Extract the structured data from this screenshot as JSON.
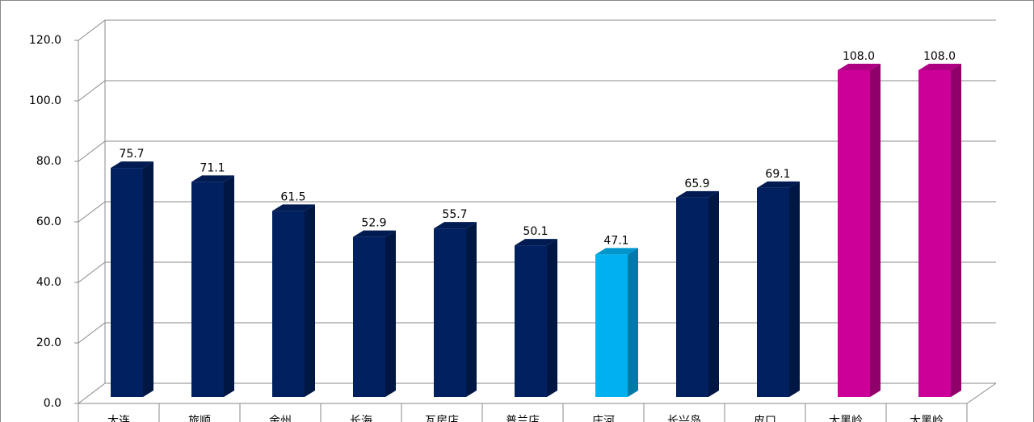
{
  "chart_data": {
    "type": "bar3d",
    "categories": [
      "大连",
      "旅顺",
      "金州",
      "长海",
      "瓦房店",
      "普兰店",
      "庄河",
      "长兴岛",
      "皮口",
      "大黑岭",
      "大黑岭"
    ],
    "values": [
      75.7,
      71.1,
      61.5,
      52.9,
      55.7,
      50.1,
      47.1,
      65.9,
      69.1,
      108.0,
      108.0
    ],
    "value_labels": [
      "75.7",
      "71.1",
      "61.5",
      "52.9",
      "55.7",
      "50.1",
      "47.1",
      "65.9",
      "69.1",
      "108.0",
      "108.0"
    ],
    "colors": [
      "#002060",
      "#002060",
      "#002060",
      "#002060",
      "#002060",
      "#002060",
      "#00b0f0",
      "#002060",
      "#002060",
      "#cc0099",
      "#cc0099"
    ],
    "ylim": [
      0,
      120
    ],
    "yticks": [
      {
        "value": 0,
        "label": "0.0"
      },
      {
        "value": 20,
        "label": "20.0"
      },
      {
        "value": 40,
        "label": "40.0"
      },
      {
        "value": 60,
        "label": "60.0"
      },
      {
        "value": 80,
        "label": "80.0"
      },
      {
        "value": 100,
        "label": "100.0"
      },
      {
        "value": 120,
        "label": "120.0"
      }
    ],
    "grid": true
  }
}
